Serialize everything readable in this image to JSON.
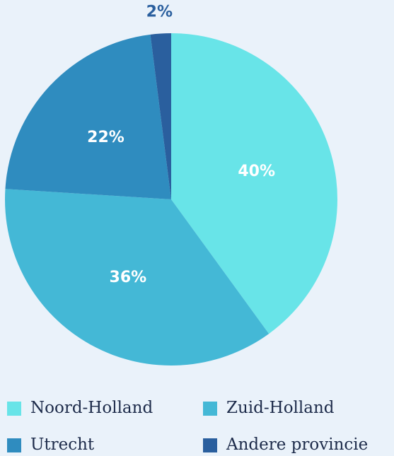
{
  "chart_data": {
    "type": "pie",
    "categories": [
      "Noord-Holland",
      "Zuid-Holland",
      "Utrecht",
      "Andere provincie"
    ],
    "values": [
      40,
      36,
      22,
      2
    ],
    "value_labels": [
      "40%",
      "36%",
      "22%",
      "2%"
    ],
    "colors": [
      "#68e4e8",
      "#44b8d6",
      "#2f8cbf",
      "#2a5f9e"
    ],
    "legend": "bottom"
  }
}
